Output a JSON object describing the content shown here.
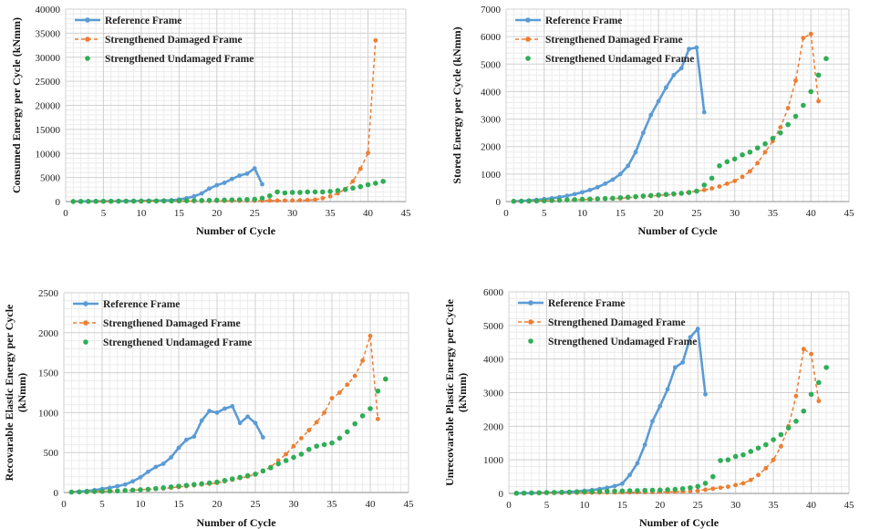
{
  "colors": {
    "reference": "#5b9bd5",
    "damaged": "#ed7d31",
    "undamaged": "#2fad55",
    "grid_major": "#d0d0d0",
    "grid_minor": "#ececec"
  },
  "chart_data": [
    {
      "type": "line",
      "ylabel": "Consumed  Energy  per Cycle  (kNmm)",
      "xlabel": "Number of Cycle",
      "xlim": [
        0,
        45
      ],
      "ylim": [
        0,
        40000
      ],
      "xticks": [
        0,
        5,
        10,
        15,
        20,
        25,
        30,
        35,
        40,
        45
      ],
      "yticks": [
        0,
        5000,
        10000,
        15000,
        20000,
        25000,
        30000,
        35000,
        40000
      ],
      "xtick_labels": [
        "0",
        "5",
        "10",
        "15",
        "20",
        "25",
        "30",
        "35",
        "40",
        "45"
      ],
      "ytick_labels": [
        "0",
        "5000",
        "10000",
        "15000",
        "20000",
        "25000",
        "30000",
        "35000",
        "40000"
      ],
      "grid": true,
      "legend_position": "top-left",
      "series": [
        {
          "name": "Reference Frame",
          "style": "solid",
          "x": [
            1,
            2,
            3,
            4,
            5,
            6,
            7,
            8,
            9,
            10,
            11,
            12,
            13,
            14,
            15,
            16,
            17,
            18,
            19,
            20,
            21,
            22,
            23,
            24,
            25,
            26
          ],
          "y": [
            20,
            30,
            40,
            50,
            60,
            70,
            80,
            90,
            110,
            130,
            160,
            190,
            230,
            280,
            420,
            700,
            1100,
            1700,
            2700,
            3400,
            3900,
            4700,
            5400,
            5800,
            6900,
            3600
          ]
        },
        {
          "name": "Strengthened Damaged Frame",
          "style": "dashed",
          "x": [
            1,
            2,
            3,
            4,
            5,
            6,
            7,
            8,
            9,
            10,
            11,
            12,
            13,
            14,
            15,
            16,
            17,
            18,
            19,
            20,
            21,
            22,
            23,
            24,
            25,
            26,
            27,
            28,
            29,
            30,
            31,
            32,
            33,
            34,
            35,
            36,
            37,
            38,
            39,
            40,
            41
          ],
          "y": [
            10,
            15,
            20,
            25,
            30,
            35,
            40,
            45,
            50,
            55,
            60,
            65,
            70,
            75,
            80,
            90,
            100,
            110,
            120,
            130,
            140,
            150,
            160,
            170,
            180,
            190,
            200,
            210,
            220,
            240,
            260,
            300,
            400,
            700,
            1100,
            1700,
            2600,
            4200,
            6800,
            10100,
            33500
          ]
        },
        {
          "name": "Strengthened Undamaged Frame",
          "style": "markers",
          "x": [
            1,
            2,
            3,
            4,
            5,
            6,
            7,
            8,
            9,
            10,
            11,
            12,
            13,
            14,
            15,
            16,
            17,
            18,
            19,
            20,
            21,
            22,
            23,
            24,
            25,
            26,
            27,
            28,
            29,
            30,
            31,
            32,
            33,
            34,
            35,
            36,
            37,
            38,
            39,
            40,
            41,
            42
          ],
          "y": [
            20,
            30,
            40,
            50,
            60,
            70,
            80,
            90,
            100,
            110,
            120,
            130,
            140,
            150,
            170,
            190,
            210,
            230,
            260,
            290,
            320,
            350,
            380,
            420,
            470,
            700,
            1200,
            2000,
            1800,
            1900,
            1900,
            2000,
            2000,
            2000,
            2100,
            2300,
            2500,
            2800,
            3100,
            3500,
            3800,
            4200
          ]
        }
      ]
    },
    {
      "type": "line",
      "ylabel": "Stored  Energy  per Cycle  (kNmm)",
      "xlabel": "Number of Cycle",
      "xlim": [
        0,
        45
      ],
      "ylim": [
        0,
        7000
      ],
      "xticks": [
        0,
        5,
        10,
        15,
        20,
        25,
        30,
        35,
        40,
        45
      ],
      "yticks": [
        0,
        1000,
        2000,
        3000,
        4000,
        5000,
        6000,
        7000
      ],
      "xtick_labels": [
        "0",
        "5",
        "10",
        "15",
        "20",
        "25",
        "30",
        "35",
        "40",
        "45"
      ],
      "ytick_labels": [
        "0",
        "1000",
        "2000",
        "3000",
        "4000",
        "5000",
        "6000",
        "7000"
      ],
      "grid": true,
      "legend_position": "top-left",
      "series": [
        {
          "name": "Reference Frame",
          "style": "solid",
          "x": [
            1,
            2,
            3,
            4,
            5,
            6,
            7,
            8,
            9,
            10,
            11,
            12,
            13,
            14,
            15,
            16,
            17,
            18,
            19,
            20,
            21,
            22,
            23,
            24,
            25,
            26
          ],
          "y": [
            10,
            20,
            40,
            60,
            90,
            120,
            160,
            210,
            270,
            340,
            420,
            520,
            650,
            800,
            1000,
            1300,
            1800,
            2500,
            3150,
            3650,
            4150,
            4600,
            4850,
            5550,
            5600,
            3250
          ]
        },
        {
          "name": "Strengthened Damaged Frame",
          "style": "dashed",
          "x": [
            1,
            2,
            3,
            4,
            5,
            6,
            7,
            8,
            9,
            10,
            11,
            12,
            13,
            14,
            15,
            16,
            17,
            18,
            19,
            20,
            21,
            22,
            23,
            24,
            25,
            26,
            27,
            28,
            29,
            30,
            31,
            32,
            33,
            34,
            35,
            36,
            37,
            38,
            39,
            40,
            41
          ],
          "y": [
            5,
            10,
            15,
            20,
            25,
            30,
            40,
            50,
            60,
            70,
            80,
            90,
            100,
            110,
            120,
            140,
            160,
            180,
            200,
            220,
            240,
            260,
            300,
            340,
            380,
            420,
            480,
            550,
            650,
            750,
            900,
            1100,
            1400,
            1800,
            2200,
            2700,
            3400,
            4400,
            5950,
            6100,
            3650
          ]
        },
        {
          "name": "Strengthened Undamaged Frame",
          "style": "markers",
          "x": [
            1,
            2,
            3,
            4,
            5,
            6,
            7,
            8,
            9,
            10,
            11,
            12,
            13,
            14,
            15,
            16,
            17,
            18,
            19,
            20,
            21,
            22,
            23,
            24,
            25,
            26,
            27,
            28,
            29,
            30,
            31,
            32,
            33,
            34,
            35,
            36,
            37,
            38,
            39,
            40,
            41,
            42
          ],
          "y": [
            10,
            15,
            20,
            25,
            30,
            40,
            50,
            60,
            70,
            80,
            90,
            100,
            110,
            120,
            140,
            160,
            180,
            200,
            220,
            240,
            260,
            280,
            300,
            330,
            380,
            600,
            850,
            1300,
            1450,
            1550,
            1700,
            1800,
            1950,
            2100,
            2300,
            2500,
            2800,
            3100,
            3500,
            4000,
            4600,
            5200
          ]
        }
      ]
    },
    {
      "type": "line",
      "ylabel_lines": [
        "Recovarable Elastic Energy per Cycle",
        "(kNmm)"
      ],
      "xlabel": "Number of Cycle",
      "xlim": [
        0,
        45
      ],
      "ylim": [
        0,
        2500
      ],
      "xticks": [
        0,
        5,
        10,
        15,
        20,
        25,
        30,
        35,
        40,
        45
      ],
      "yticks": [
        0,
        500,
        1000,
        1500,
        2000,
        2500
      ],
      "xtick_labels": [
        "0",
        "5",
        "10",
        "15",
        "20",
        "25",
        "30",
        "35",
        "40",
        "45"
      ],
      "ytick_labels": [
        "0",
        "500",
        "1000",
        "1500",
        "2000",
        "2500"
      ],
      "grid": true,
      "legend_position": "top-left",
      "series": [
        {
          "name": "Reference Frame",
          "style": "solid",
          "x": [
            1,
            2,
            3,
            4,
            5,
            6,
            7,
            8,
            9,
            10,
            11,
            12,
            13,
            14,
            15,
            16,
            17,
            18,
            19,
            20,
            21,
            22,
            23,
            24,
            25,
            26
          ],
          "y": [
            5,
            10,
            20,
            30,
            45,
            60,
            80,
            100,
            140,
            190,
            260,
            320,
            360,
            440,
            560,
            660,
            700,
            900,
            1020,
            1000,
            1050,
            1080,
            870,
            950,
            870,
            690
          ]
        },
        {
          "name": "Strengthened Damaged Frame",
          "style": "dashed",
          "x": [
            1,
            2,
            3,
            4,
            5,
            6,
            7,
            8,
            9,
            10,
            11,
            12,
            13,
            14,
            15,
            16,
            17,
            18,
            19,
            20,
            21,
            22,
            23,
            24,
            25,
            26,
            27,
            28,
            29,
            30,
            31,
            32,
            33,
            34,
            35,
            36,
            37,
            38,
            39,
            40,
            41
          ],
          "y": [
            5,
            8,
            10,
            12,
            15,
            18,
            20,
            25,
            30,
            35,
            40,
            45,
            50,
            60,
            70,
            80,
            90,
            100,
            110,
            120,
            140,
            160,
            180,
            200,
            230,
            270,
            320,
            400,
            480,
            580,
            680,
            780,
            880,
            1000,
            1180,
            1250,
            1350,
            1460,
            1650,
            1960,
            920
          ]
        },
        {
          "name": "Strengthened Undamaged Frame",
          "style": "markers",
          "x": [
            1,
            2,
            3,
            4,
            5,
            6,
            7,
            8,
            9,
            10,
            11,
            12,
            13,
            14,
            15,
            16,
            17,
            18,
            19,
            20,
            21,
            22,
            23,
            24,
            25,
            26,
            27,
            28,
            29,
            30,
            31,
            32,
            33,
            34,
            35,
            36,
            37,
            38,
            39,
            40,
            41,
            42
          ],
          "y": [
            5,
            8,
            10,
            12,
            15,
            18,
            20,
            25,
            30,
            35,
            40,
            50,
            60,
            70,
            80,
            90,
            100,
            110,
            120,
            130,
            150,
            170,
            190,
            210,
            230,
            270,
            310,
            360,
            400,
            440,
            480,
            540,
            580,
            600,
            620,
            680,
            760,
            860,
            960,
            1050,
            1270,
            1420
          ]
        }
      ]
    },
    {
      "type": "line",
      "ylabel_lines": [
        "Unrecovarable Plastic Energy per Cycle",
        "(kNmm)"
      ],
      "xlabel": "Number of Cycle",
      "xlim": [
        0,
        45
      ],
      "ylim": [
        0,
        6000
      ],
      "xticks": [
        0,
        5,
        10,
        15,
        20,
        25,
        30,
        35,
        40,
        45
      ],
      "yticks": [
        0,
        1000,
        2000,
        3000,
        4000,
        5000,
        6000
      ],
      "xtick_labels": [
        "0",
        "5",
        "10",
        "15",
        "20",
        "25",
        "30",
        "35",
        "40",
        "45"
      ],
      "ytick_labels": [
        "0",
        "1000",
        "2000",
        "3000",
        "4000",
        "5000",
        "6000"
      ],
      "grid": true,
      "legend_position": "top-left",
      "series": [
        {
          "name": "Reference Frame",
          "style": "solid",
          "x": [
            1,
            2,
            3,
            4,
            5,
            6,
            7,
            8,
            9,
            10,
            11,
            12,
            13,
            14,
            15,
            16,
            17,
            18,
            19,
            20,
            21,
            22,
            23,
            24,
            25,
            26
          ],
          "y": [
            5,
            8,
            12,
            16,
            20,
            25,
            35,
            45,
            60,
            80,
            100,
            130,
            170,
            220,
            290,
            550,
            900,
            1450,
            2150,
            2600,
            3100,
            3750,
            3900,
            4650,
            4900,
            2950
          ]
        },
        {
          "name": "Strengthened Damaged Frame",
          "style": "dashed",
          "x": [
            1,
            2,
            3,
            4,
            5,
            6,
            7,
            8,
            9,
            10,
            11,
            12,
            13,
            14,
            15,
            16,
            17,
            18,
            19,
            20,
            21,
            22,
            23,
            24,
            25,
            26,
            27,
            28,
            29,
            30,
            31,
            32,
            33,
            34,
            35,
            36,
            37,
            38,
            39,
            40,
            41
          ],
          "y": [
            3,
            5,
            7,
            9,
            11,
            13,
            15,
            17,
            19,
            21,
            23,
            25,
            27,
            29,
            31,
            33,
            35,
            37,
            39,
            41,
            45,
            50,
            55,
            65,
            80,
            110,
            140,
            170,
            200,
            250,
            300,
            400,
            550,
            750,
            1000,
            1400,
            2000,
            2900,
            4300,
            4150,
            2750
          ]
        },
        {
          "name": "Strengthened Undamaged Frame",
          "style": "markers",
          "x": [
            1,
            2,
            3,
            4,
            5,
            6,
            7,
            8,
            9,
            10,
            11,
            12,
            13,
            14,
            15,
            16,
            17,
            18,
            19,
            20,
            21,
            22,
            23,
            24,
            25,
            26,
            27,
            28,
            29,
            30,
            31,
            32,
            33,
            34,
            35,
            36,
            37,
            38,
            39,
            40,
            41,
            42
          ],
          "y": [
            5,
            10,
            15,
            20,
            25,
            30,
            35,
            40,
            45,
            50,
            55,
            60,
            65,
            70,
            75,
            80,
            85,
            90,
            95,
            100,
            110,
            120,
            140,
            170,
            210,
            300,
            500,
            980,
            1000,
            1100,
            1150,
            1250,
            1350,
            1450,
            1600,
            1750,
            1950,
            2150,
            2450,
            2950,
            3300,
            3750
          ]
        }
      ]
    }
  ]
}
